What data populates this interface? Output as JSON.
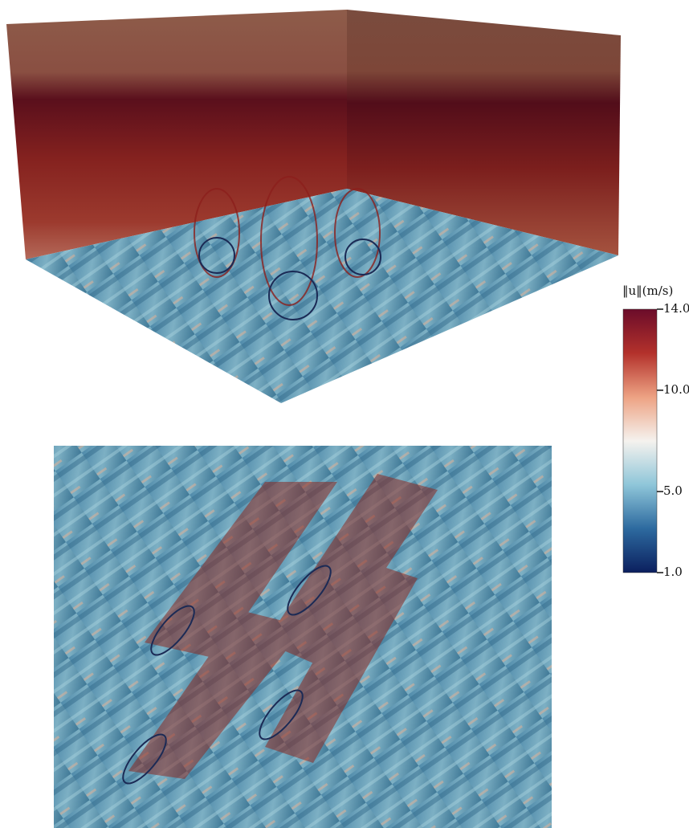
{
  "colorbar": {
    "title": "‖u‖(m/s)",
    "range": [
      1,
      14
    ],
    "colors": [
      "#0b1f5e",
      "#2d6a9f",
      "#8fc6d9",
      "#f5f2ee",
      "#eda283",
      "#b3312b",
      "#6b0c2a"
    ],
    "ticks": [
      {
        "value": 14,
        "label": "14.0"
      },
      {
        "value": 10,
        "label": "10.0"
      },
      {
        "value": 5,
        "label": "5.0"
      },
      {
        "value": 1,
        "label": "1.0"
      }
    ]
  }
}
